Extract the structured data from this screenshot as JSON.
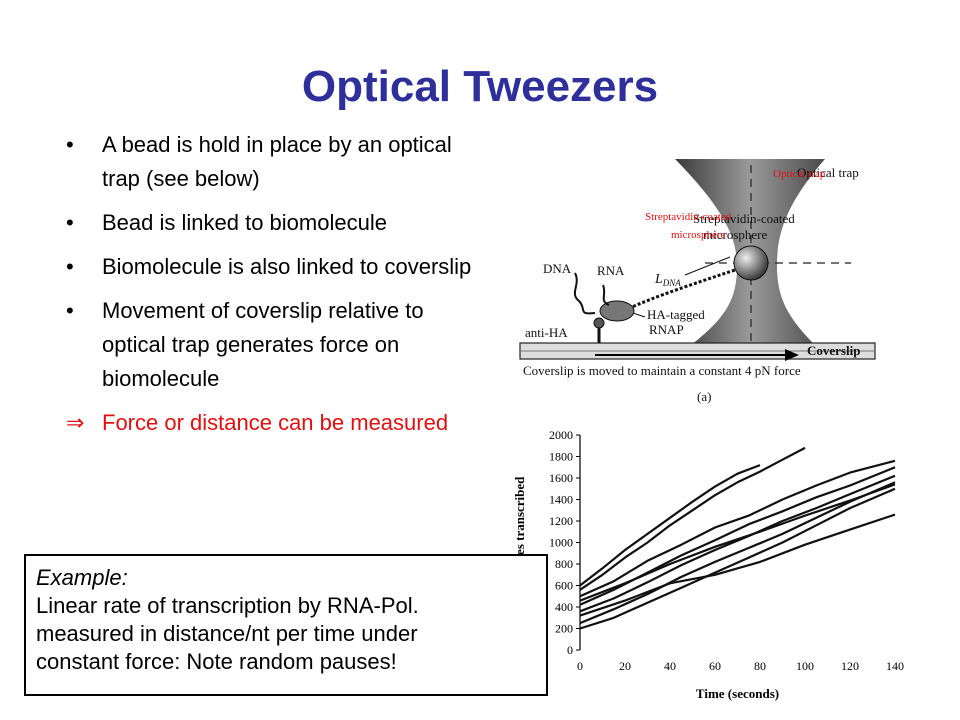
{
  "slide": {
    "title": "Optical Tweezers"
  },
  "bullets": [
    {
      "marker": "•",
      "text": "A bead is hold in place by an optical trap (see below)"
    },
    {
      "marker": "•",
      "text": "Bead is linked to biomolecule"
    },
    {
      "marker": "•",
      "text": "Biomolecule is also linked to coverslip"
    },
    {
      "marker": "•",
      "text": "Movement of coverslip relative to optical trap generates force on biomolecule"
    },
    {
      "marker": "⇒",
      "text": "Force or distance can be measured"
    }
  ],
  "example": {
    "heading": "Example:",
    "lines": [
      "Linear rate of transcription by RNA-Pol.",
      "measured in distance/nt per time under",
      "constant force: Note random pauses!"
    ]
  },
  "diagram": {
    "label_optical_trap": "Optical trap",
    "label_optical_trap_red": "Optical trap",
    "label_streptavidin": "Streptavidin-coated",
    "label_microsphere": "microsphere",
    "label_dna": "DNA",
    "label_rna": "RNA",
    "label_ldna": "L",
    "label_ldna_sub": "DNA",
    "label_ha_tagged": "HA-tagged",
    "label_rnap": "RNAP",
    "label_anti_ha": "anti-HA",
    "label_coverslip": "Coverslip",
    "caption": "Coverslip is moved to maintain a constant 4 pN force",
    "panel": "(a)",
    "colors": {
      "annotation": "#e01010"
    }
  },
  "chart_data": {
    "type": "line",
    "xlabel": "Time (seconds)",
    "ylabel": "Nucleotides transcribed",
    "xlim": [
      0,
      140
    ],
    "ylim": [
      0,
      2000
    ],
    "xticks": [
      0,
      20,
      40,
      60,
      80,
      100,
      120,
      140
    ],
    "yticks": [
      0,
      200,
      400,
      600,
      800,
      1000,
      1200,
      1400,
      1600,
      1800,
      2000
    ],
    "series": [
      {
        "x": [
          0,
          10,
          20,
          30,
          40,
          50,
          60,
          70,
          80
        ],
        "values": [
          600,
          760,
          930,
          1080,
          1230,
          1380,
          1520,
          1640,
          1720
        ]
      },
      {
        "x": [
          0,
          10,
          20,
          30,
          40,
          50,
          60,
          70,
          80,
          90,
          100
        ],
        "values": [
          560,
          700,
          860,
          1000,
          1160,
          1300,
          1440,
          1560,
          1660,
          1770,
          1880
        ]
      },
      {
        "x": [
          0,
          15,
          30,
          45,
          60,
          75,
          90,
          105,
          120,
          140
        ],
        "values": [
          500,
          640,
          830,
          980,
          1140,
          1250,
          1400,
          1530,
          1650,
          1760
        ]
      },
      {
        "x": [
          0,
          15,
          30,
          45,
          60,
          75,
          90,
          105,
          120,
          140
        ],
        "values": [
          420,
          560,
          720,
          880,
          1020,
          1170,
          1290,
          1420,
          1530,
          1700
        ]
      },
      {
        "x": [
          0,
          15,
          30,
          45,
          60,
          75,
          90,
          105,
          120,
          140
        ],
        "values": [
          360,
          480,
          630,
          790,
          930,
          1060,
          1200,
          1320,
          1450,
          1620
        ]
      },
      {
        "x": [
          0,
          15,
          30,
          45,
          60,
          75,
          90,
          105,
          120,
          140
        ],
        "values": [
          250,
          380,
          520,
          680,
          820,
          950,
          1080,
          1230,
          1380,
          1560
        ]
      },
      {
        "x": [
          0,
          15,
          30,
          45,
          60,
          75,
          90,
          105,
          120,
          140
        ],
        "values": [
          200,
          300,
          440,
          580,
          720,
          860,
          1000,
          1160,
          1320,
          1500
        ]
      },
      {
        "x": [
          0,
          20,
          40,
          60,
          80,
          100,
          120,
          140
        ],
        "values": [
          320,
          460,
          620,
          700,
          820,
          980,
          1120,
          1260
        ]
      },
      {
        "x": [
          0,
          20,
          40,
          60,
          80,
          100,
          120,
          140
        ],
        "values": [
          460,
          620,
          800,
          960,
          1100,
          1250,
          1390,
          1540
        ]
      }
    ]
  }
}
